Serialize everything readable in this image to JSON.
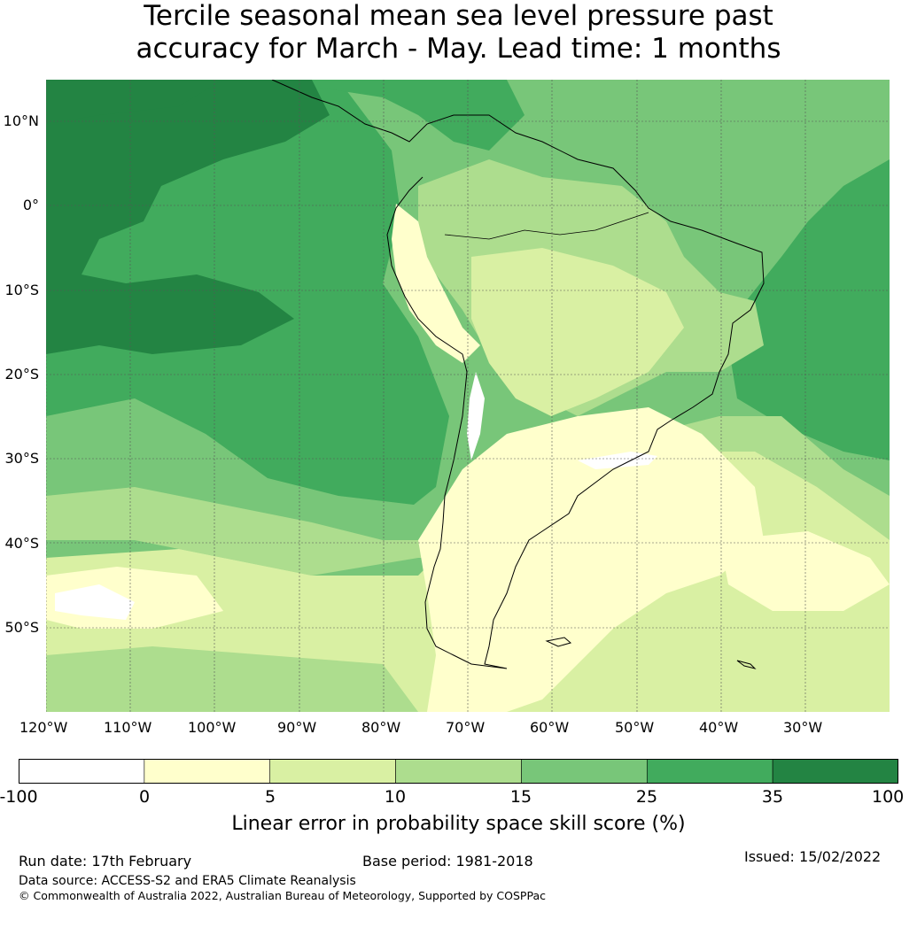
{
  "title_line1": "Tercile seasonal mean sea level pressure past",
  "title_line2": "accuracy for March - May. Lead time: 1 months",
  "lat_labels": [
    "10°N",
    "0°",
    "10°S",
    "20°S",
    "30°S",
    "40°S",
    "50°S"
  ],
  "lon_labels": [
    "120°W",
    "110°W",
    "100°W",
    "90°W",
    "80°W",
    "70°W",
    "60°W",
    "50°W",
    "40°W",
    "30°W"
  ],
  "colorbar": {
    "ticks": [
      "-100",
      "0",
      "5",
      "10",
      "15",
      "25",
      "35",
      "100"
    ],
    "colors": [
      "#ffffff",
      "#ffffcc",
      "#d9f0a3",
      "#addd8e",
      "#78c679",
      "#41ab5d",
      "#238443"
    ],
    "label": "Linear error in probability space skill score (%)"
  },
  "footer": {
    "run_date": "Run date: 17th February",
    "base_period": "Base period: 1981-2018",
    "issued": "Issued: 15/02/2022",
    "data_source": "Data source: ACCESS-S2 and ERA5 Climate Reanalysis",
    "copyright": "© Commonwealth of Australia 2022, Australian Bureau of Meteorology, Supported by COSPPac"
  }
}
